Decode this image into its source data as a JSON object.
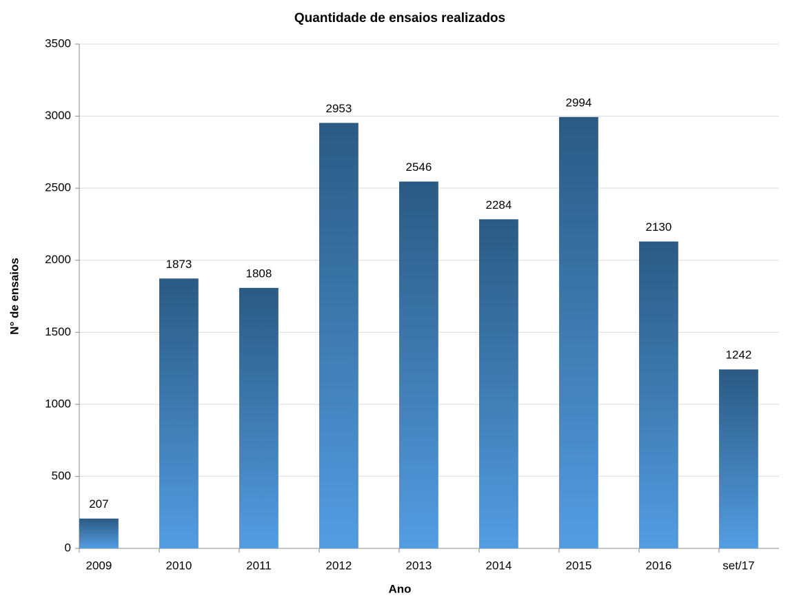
{
  "chart_data": {
    "type": "bar",
    "title": "Quantidade de ensaios realizados",
    "xlabel": "Ano",
    "ylabel": "N° de ensaios",
    "categories": [
      "2009",
      "2010",
      "2011",
      "2012",
      "2013",
      "2014",
      "2015",
      "2016",
      "set/17"
    ],
    "values": [
      207,
      1873,
      1808,
      2953,
      2546,
      2284,
      2994,
      2130,
      1242
    ],
    "colors": [
      "#2b5a84",
      "#529de2"
    ],
    "ylim": [
      0,
      3500
    ],
    "yticks": [
      0,
      500,
      1000,
      1500,
      2000,
      2500,
      3000,
      3500
    ],
    "grid": true
  }
}
